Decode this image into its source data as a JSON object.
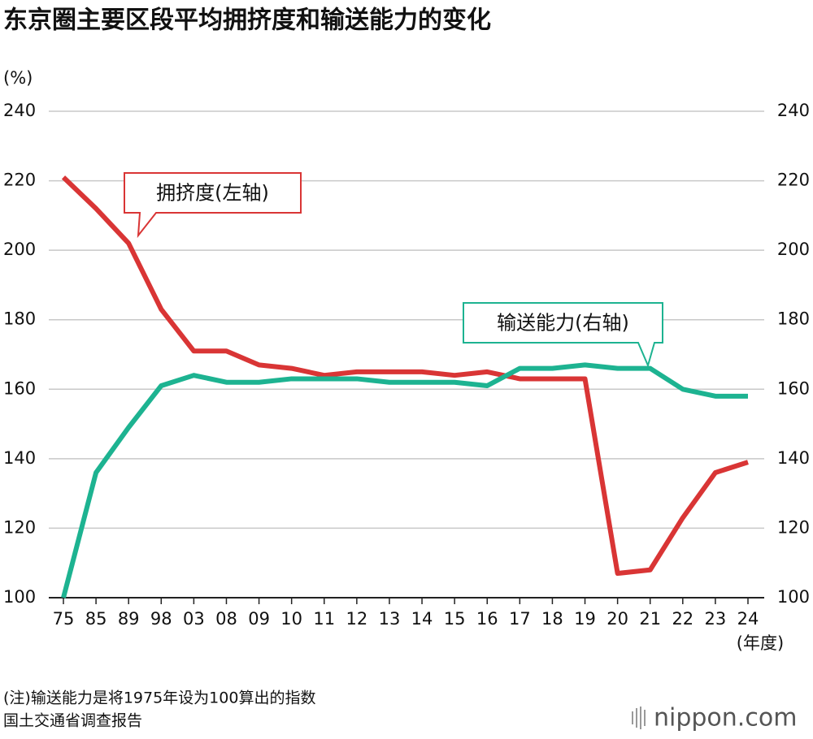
{
  "chart_data": {
    "type": "line",
    "title": "东京圈主要区段平均拥挤度和输送能力的变化",
    "y_unit": "(%)",
    "x_unit": "(年度)",
    "categories": [
      "75",
      "85",
      "89",
      "98",
      "03",
      "08",
      "09",
      "10",
      "11",
      "12",
      "13",
      "14",
      "15",
      "16",
      "17",
      "18",
      "19",
      "20",
      "21",
      "22",
      "23",
      "24"
    ],
    "series": [
      {
        "name": "拥挤度(左轴)",
        "color": "#d93535",
        "values": [
          221,
          212,
          202,
          183,
          171,
          171,
          167,
          166,
          164,
          165,
          165,
          165,
          164,
          165,
          163,
          163,
          163,
          107,
          108,
          123,
          136,
          139
        ]
      },
      {
        "name": "输送能力(右轴)",
        "color": "#1db391",
        "axis": "y2",
        "values": [
          100,
          136,
          149,
          161,
          164,
          162,
          162,
          163,
          163,
          163,
          162,
          162,
          162,
          161,
          166,
          166,
          167,
          166,
          166,
          160,
          158,
          158
        ]
      }
    ],
    "ylim": [
      100,
      240
    ],
    "yticks": [
      100,
      120,
      140,
      160,
      180,
      200,
      220,
      240
    ],
    "y2lim": [
      100,
      240
    ],
    "y2ticks": [
      100,
      120,
      140,
      160,
      180,
      200,
      220,
      240
    ],
    "grid": true,
    "notes": [
      "(注)输送能力是将1975年设为100算出的指数",
      "国土交通省调查报告"
    ],
    "source_logo": "nippon.com"
  }
}
